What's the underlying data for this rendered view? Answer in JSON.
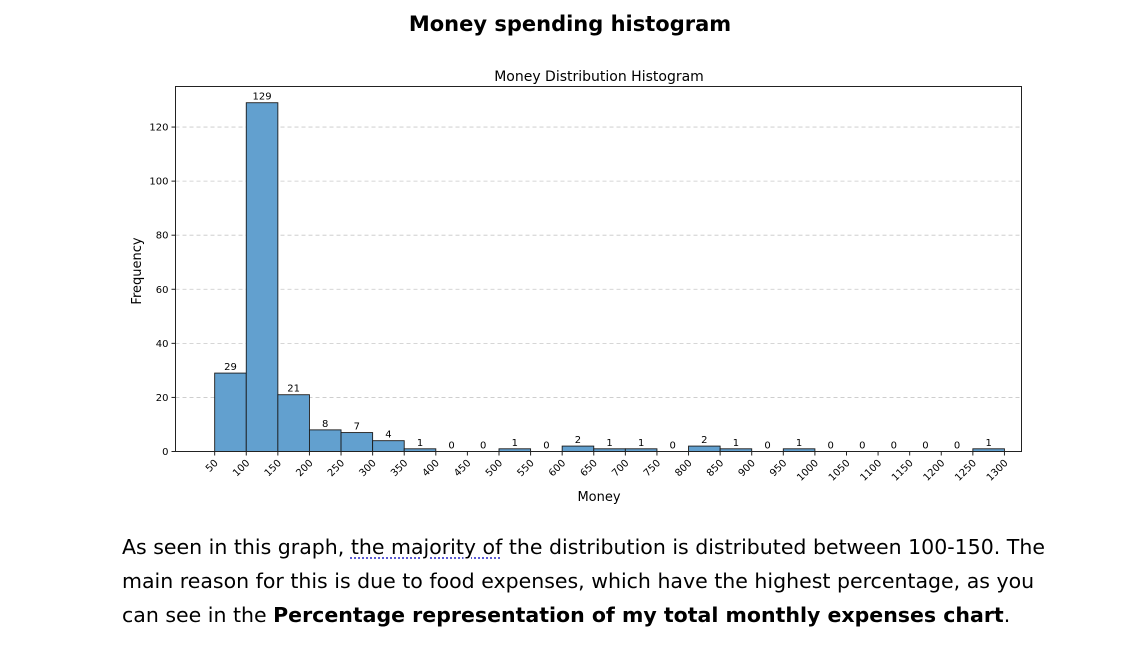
{
  "page": {
    "title": "Money spending histogram"
  },
  "paragraph": {
    "part1": "As seen in this graph, ",
    "part2_underlined": "the majority of",
    "part3": " the distribution is distributed between 100-150. The main reason for this is due to food expenses, which have the highest percentage, as you can see in the ",
    "part4_bold": "Percentage representation of my total monthly expenses chart",
    "part5": "."
  },
  "chart_data": {
    "type": "bar",
    "title": "Money Distribution Histogram",
    "xlabel": "Money",
    "ylabel": "Frequency",
    "bin_edges": [
      50,
      100,
      150,
      200,
      250,
      300,
      350,
      400,
      450,
      500,
      550,
      600,
      650,
      700,
      750,
      800,
      850,
      900,
      950,
      1000,
      1050,
      1100,
      1150,
      1200,
      1250,
      1300
    ],
    "categories": [
      "50-100",
      "100-150",
      "150-200",
      "200-250",
      "250-300",
      "300-350",
      "350-400",
      "400-450",
      "450-500",
      "500-550",
      "550-600",
      "600-650",
      "650-700",
      "700-750",
      "750-800",
      "800-850",
      "850-900",
      "900-950",
      "950-1000",
      "1000-1050",
      "1050-1100",
      "1100-1150",
      "1150-1200",
      "1200-1250",
      "1250-1300"
    ],
    "values": [
      29,
      129,
      21,
      8,
      7,
      4,
      1,
      0,
      0,
      1,
      0,
      2,
      1,
      1,
      0,
      2,
      1,
      0,
      1,
      0,
      0,
      0,
      0,
      0,
      1
    ],
    "xticks": [
      50,
      100,
      150,
      200,
      250,
      300,
      350,
      400,
      450,
      500,
      550,
      600,
      650,
      700,
      750,
      800,
      850,
      900,
      950,
      1000,
      1050,
      1100,
      1150,
      1200,
      1250,
      1300
    ],
    "yticks": [
      0,
      20,
      40,
      60,
      80,
      100,
      120
    ],
    "ylim": [
      0,
      135
    ],
    "xlim": [
      -12,
      1327
    ],
    "grid": "y-dashed",
    "colors": {
      "bar_fill": "#62a0cf",
      "bar_edge": "#1a1a1a",
      "grid": "#c8c8c8"
    }
  }
}
